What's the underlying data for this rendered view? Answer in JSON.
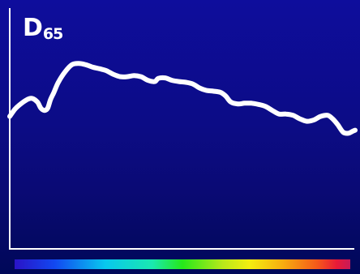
{
  "chart_data": {
    "type": "line",
    "title_main": "D",
    "title_sub": "65",
    "xlabel": "",
    "ylabel": "",
    "xlim": [
      0,
      100
    ],
    "ylim": [
      0,
      100
    ],
    "grid": false,
    "axes": [
      "left",
      "bottom"
    ],
    "line_color": "#ffffff",
    "spectrum_bar": {
      "stops": [
        {
          "position": 0.0,
          "color": "#2a13c8"
        },
        {
          "position": 0.12,
          "color": "#1248f0"
        },
        {
          "position": 0.27,
          "color": "#08c8ee"
        },
        {
          "position": 0.41,
          "color": "#1ae8b0"
        },
        {
          "position": 0.5,
          "color": "#26e81a"
        },
        {
          "position": 0.62,
          "color": "#b8e81a"
        },
        {
          "position": 0.7,
          "color": "#f4ee10"
        },
        {
          "position": 0.8,
          "color": "#f7ad10"
        },
        {
          "position": 0.9,
          "color": "#f55a1a"
        },
        {
          "position": 0.96,
          "color": "#e81a38"
        },
        {
          "position": 1.0,
          "color": "#c81a58"
        }
      ]
    },
    "series": [
      {
        "points": [
          [
            0.0,
            55.0
          ],
          [
            1.5,
            58.0
          ],
          [
            3.0,
            60.0
          ],
          [
            5.0,
            62.0
          ],
          [
            6.5,
            62.5
          ],
          [
            8.0,
            61.0
          ],
          [
            9.0,
            58.5
          ],
          [
            10.0,
            57.5
          ],
          [
            11.0,
            58.5
          ],
          [
            11.8,
            62.0
          ],
          [
            12.8,
            65.0
          ],
          [
            14.0,
            69.0
          ],
          [
            16.0,
            73.5
          ],
          [
            18.0,
            76.5
          ],
          [
            20.0,
            77.0
          ],
          [
            22.0,
            76.5
          ],
          [
            24.0,
            75.5
          ],
          [
            26.0,
            74.8
          ],
          [
            28.0,
            74.0
          ],
          [
            30.0,
            72.5
          ],
          [
            32.0,
            71.5
          ],
          [
            34.0,
            71.5
          ],
          [
            36.0,
            72.0
          ],
          [
            38.0,
            71.5
          ],
          [
            40.0,
            70.0
          ],
          [
            42.0,
            69.5
          ],
          [
            43.0,
            70.8
          ],
          [
            45.0,
            71.0
          ],
          [
            47.0,
            70.0
          ],
          [
            49.0,
            69.5
          ],
          [
            51.0,
            69.2
          ],
          [
            53.0,
            68.5
          ],
          [
            55.0,
            66.8
          ],
          [
            57.0,
            65.8
          ],
          [
            59.0,
            65.5
          ],
          [
            61.0,
            65.0
          ],
          [
            62.5,
            63.5
          ],
          [
            64.0,
            61.0
          ],
          [
            66.0,
            60.2
          ],
          [
            68.0,
            60.5
          ],
          [
            70.0,
            60.5
          ],
          [
            72.0,
            60.0
          ],
          [
            74.0,
            59.2
          ],
          [
            76.0,
            57.5
          ],
          [
            78.0,
            56.0
          ],
          [
            80.0,
            56.0
          ],
          [
            82.0,
            55.5
          ],
          [
            84.0,
            54.0
          ],
          [
            86.0,
            53.0
          ],
          [
            88.0,
            53.5
          ],
          [
            90.0,
            55.0
          ],
          [
            92.0,
            55.5
          ],
          [
            93.5,
            54.0
          ],
          [
            95.0,
            51.5
          ],
          [
            96.5,
            48.5
          ],
          [
            98.0,
            48.0
          ],
          [
            99.2,
            48.8
          ],
          [
            100.0,
            49.3
          ]
        ]
      }
    ]
  }
}
